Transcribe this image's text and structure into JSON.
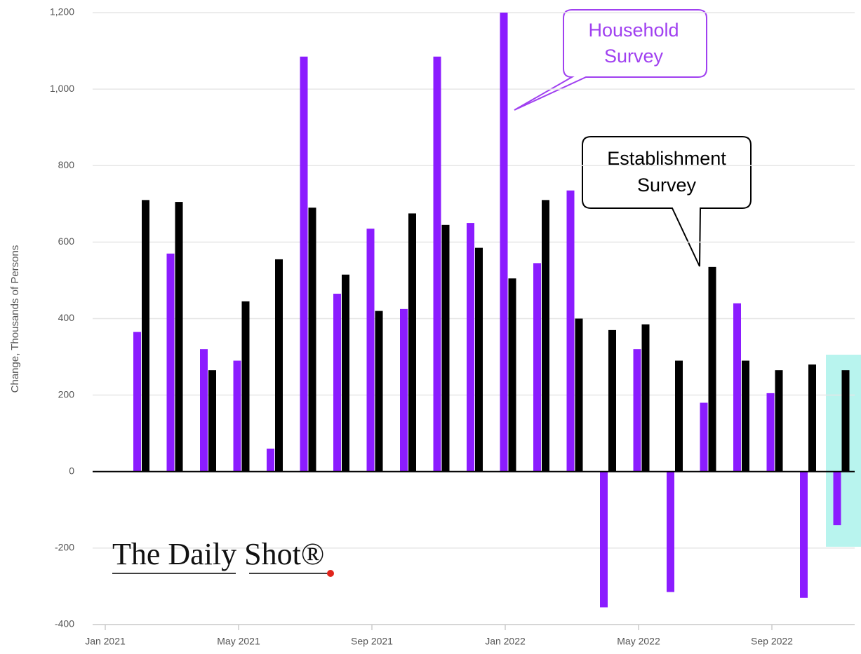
{
  "chart_data": {
    "type": "bar",
    "y_label": "Change, Thousands of Persons",
    "categories": [
      "Jan 2021",
      null,
      null,
      null,
      "May 2021",
      null,
      null,
      null,
      "Sep 2021",
      null,
      null,
      null,
      "Jan 2022",
      null,
      null,
      null,
      "May 2022",
      null,
      null,
      null,
      "Sep 2022",
      null,
      null
    ],
    "series": [
      {
        "color": "#8b1cff",
        "values": [
          null,
          365,
          570,
          320,
          290,
          60,
          1085,
          465,
          635,
          425,
          1085,
          650,
          1200,
          545,
          735,
          -355,
          320,
          -315,
          180,
          440,
          205,
          -330,
          -140
        ]
      },
      {
        "color": "#000000",
        "values": [
          null,
          710,
          705,
          265,
          445,
          555,
          690,
          515,
          420,
          675,
          645,
          585,
          505,
          710,
          400,
          370,
          385,
          290,
          535,
          290,
          265,
          280,
          265
        ]
      }
    ],
    "ylim": [
      -400,
      1200
    ],
    "yticks": [
      -400,
      -200,
      0,
      200,
      400,
      600,
      800,
      {
        "value": 1000,
        "label": "1,000"
      },
      {
        "value": 1200,
        "label": "1,200"
      }
    ],
    "grid": true,
    "annotations": [
      {
        "lines": [
          "Household",
          "Survey"
        ],
        "color": "#a040f0"
      },
      {
        "lines": [
          "Establishment",
          "Survey"
        ],
        "color": "#000000"
      }
    ],
    "watermark": "The Daily Shot®"
  }
}
